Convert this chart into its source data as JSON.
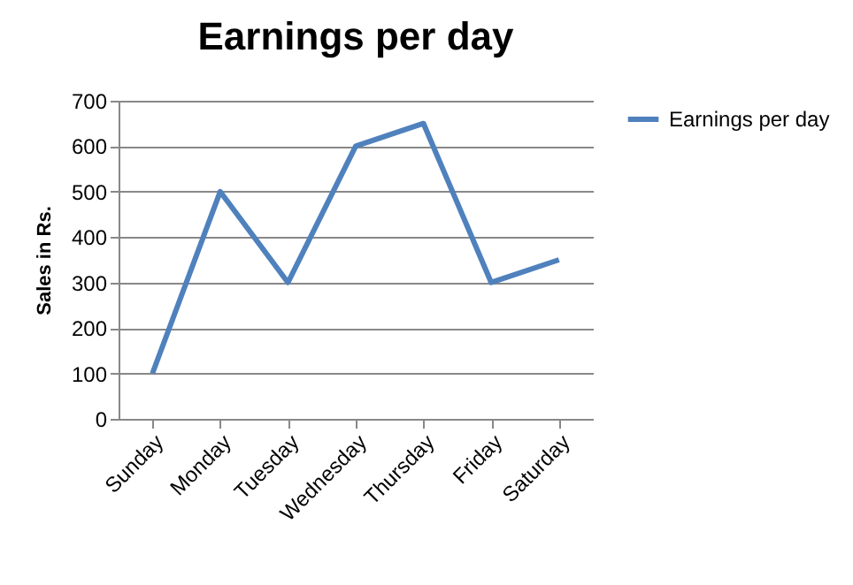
{
  "chart_data": {
    "type": "line",
    "title": "Earnings per day",
    "ylabel": "Sales in Rs.",
    "categories": [
      "Sunday",
      "Monday",
      "Tuesday",
      "Wednesday",
      "Thursday",
      "Friday",
      "Saturday"
    ],
    "series": [
      {
        "name": "Earnings per day",
        "color": "#4f81bd",
        "values": [
          100,
          500,
          300,
          600,
          650,
          300,
          350
        ]
      }
    ],
    "ylim": [
      0,
      700
    ],
    "yticks": [
      0,
      100,
      200,
      300,
      400,
      500,
      600,
      700
    ],
    "grid": "y",
    "legend": "right",
    "marker": "none",
    "line_style": "solid"
  }
}
